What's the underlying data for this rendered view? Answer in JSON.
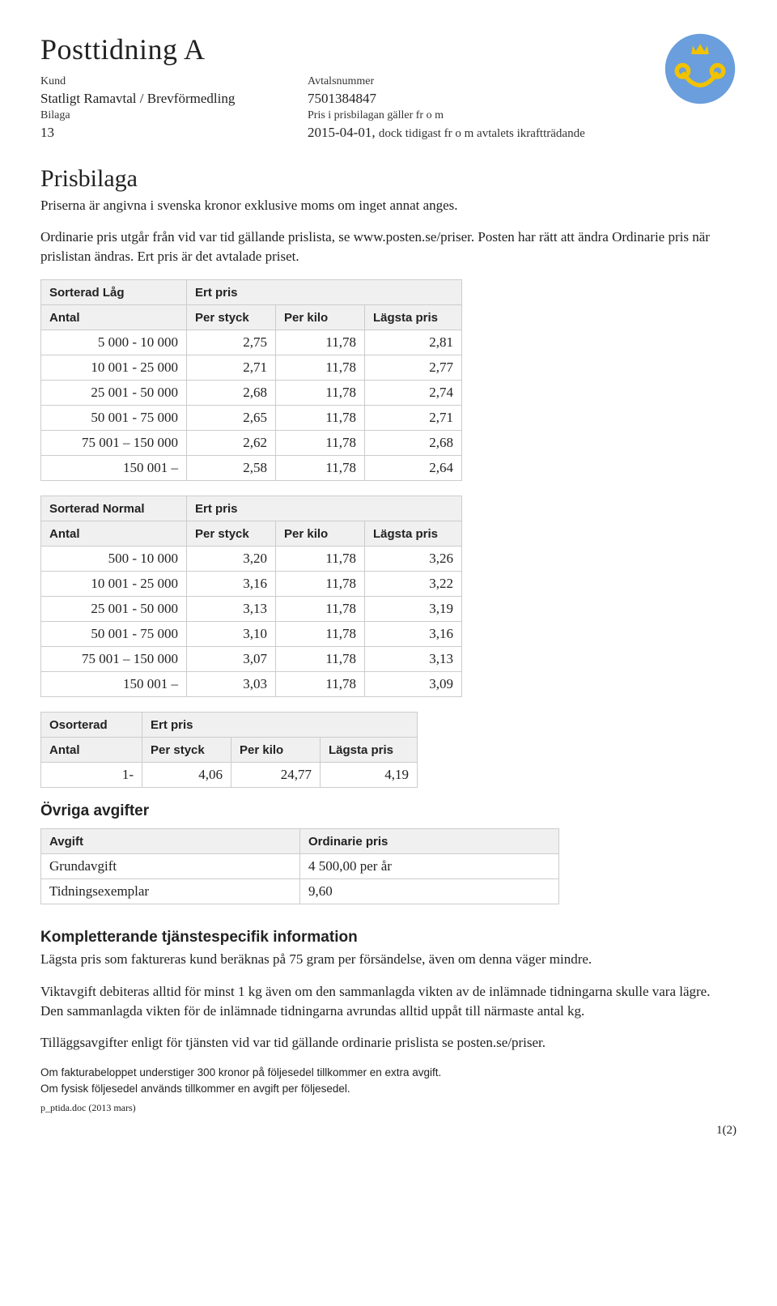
{
  "header": {
    "title": "Posttidning A",
    "labels": {
      "kund": "Kund",
      "avtal": "Avtalsnummer",
      "bilaga": "Bilaga",
      "gallerfrom": "Pris i prisbilagan gäller fr o m"
    },
    "kund_value": "Statligt Ramavtal / Brevförmedling",
    "avtal_value": "7501384847",
    "bilaga_value": "13",
    "date_value": "2015-04-01,",
    "date_note": "dock tidigast fr o m avtalets ikraftträdande"
  },
  "logo": {
    "bg": "#6a9edc",
    "horn": "#f2c200",
    "crown": "#f2c200"
  },
  "section_title": "Prisbilaga",
  "intro": "Priserna är angivna i svenska kronor exklusive moms om inget annat anges.",
  "para2": "Ordinarie pris utgår från vid var tid gällande prislista, se www.posten.se/priser. Posten har rätt att ändra Ordinarie pris när prislistan ändras. Ert pris är det avtalade priset.",
  "col_headers": {
    "antal": "Antal",
    "ert_pris": "Ert pris",
    "per_styck": "Per styck",
    "per_kilo": "Per kilo",
    "lagsta": "Lägsta pris"
  },
  "tables": {
    "sorterad_lag": {
      "title": "Sorterad Låg",
      "rows": [
        {
          "range": "5 000 - 10 000",
          "ps": "2,75",
          "pk": "11,78",
          "lp": "2,81"
        },
        {
          "range": "10 001 - 25 000",
          "ps": "2,71",
          "pk": "11,78",
          "lp": "2,77"
        },
        {
          "range": "25 001 - 50 000",
          "ps": "2,68",
          "pk": "11,78",
          "lp": "2,74"
        },
        {
          "range": "50 001 - 75 000",
          "ps": "2,65",
          "pk": "11,78",
          "lp": "2,71"
        },
        {
          "range": "75 001 – 150 000",
          "ps": "2,62",
          "pk": "11,78",
          "lp": "2,68"
        },
        {
          "range": "150 001 –",
          "ps": "2,58",
          "pk": "11,78",
          "lp": "2,64"
        }
      ]
    },
    "sorterad_normal": {
      "title": "Sorterad Normal",
      "rows": [
        {
          "range": "500 - 10 000",
          "ps": "3,20",
          "pk": "11,78",
          "lp": "3,26"
        },
        {
          "range": "10 001 - 25 000",
          "ps": "3,16",
          "pk": "11,78",
          "lp": "3,22"
        },
        {
          "range": "25 001 - 50 000",
          "ps": "3,13",
          "pk": "11,78",
          "lp": "3,19"
        },
        {
          "range": "50 001 - 75 000",
          "ps": "3,10",
          "pk": "11,78",
          "lp": "3,16"
        },
        {
          "range": "75 001 – 150 000",
          "ps": "3,07",
          "pk": "11,78",
          "lp": "3,13"
        },
        {
          "range": "150 001 –",
          "ps": "3,03",
          "pk": "11,78",
          "lp": "3,09"
        }
      ]
    },
    "osorterad": {
      "title": "Osorterad",
      "rows": [
        {
          "range": "1-",
          "ps": "4,06",
          "pk": "24,77",
          "lp": "4,19"
        }
      ]
    }
  },
  "ovriga": {
    "title": "Övriga avgifter",
    "col1": "Avgift",
    "col2": "Ordinarie pris",
    "rows": [
      {
        "name": "Grundavgift",
        "val": "4 500,00 per år"
      },
      {
        "name": "Tidningsexemplar",
        "val": "9,60"
      }
    ]
  },
  "kompl": {
    "title": "Kompletterande tjänstespecifik information",
    "p1": "Lägsta pris som faktureras kund beräknas på 75 gram per försändelse, även om denna väger mindre.",
    "p2": "Viktavgift debiteras alltid för minst 1 kg även om den sammanlagda vikten av de inlämnade tidningarna skulle vara lägre. Den sammanlagda vikten för de inlämnade tidningarna avrundas alltid uppåt till närmaste antal kg.",
    "p3": "Tilläggsavgifter enligt för tjänsten vid var tid gällande ordinarie prislista se posten.se/priser."
  },
  "footnotes": {
    "f1": "Om fakturabeloppet understiger 300 kronor på följesedel tillkommer en extra avgift.",
    "f2": "Om fysisk följesedel används tillkommer en avgift per följesedel."
  },
  "doc_ref": "p_ptida.doc (2013 mars)",
  "page": "1(2)"
}
